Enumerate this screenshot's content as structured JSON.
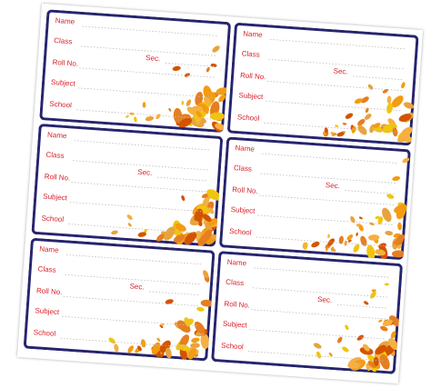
{
  "labels": [
    {
      "name": "Name",
      "class": "Class",
      "sec": "Sec.",
      "roll": "Roll No.",
      "subject": "Subject",
      "school": "School"
    },
    {
      "name": "Name",
      "class": "Class",
      "sec": "Sec.",
      "roll": "Roll No.",
      "subject": "Subject",
      "school": "School"
    },
    {
      "name": "Name",
      "class": "Class",
      "sec": "Sec.",
      "roll": "Roll No.",
      "subject": "Subject",
      "school": "School"
    },
    {
      "name": "Name",
      "class": "Class",
      "sec": "Sec.",
      "roll": "Roll No.",
      "subject": "Subject",
      "school": "School"
    },
    {
      "name": "Name",
      "class": "Class",
      "sec": "Sec.",
      "roll": "Roll No.",
      "subject": "Subject",
      "school": "School"
    },
    {
      "name": "Name",
      "class": "Class",
      "sec": "Sec.",
      "roll": "Roll No.",
      "subject": "Subject",
      "school": "School"
    }
  ]
}
